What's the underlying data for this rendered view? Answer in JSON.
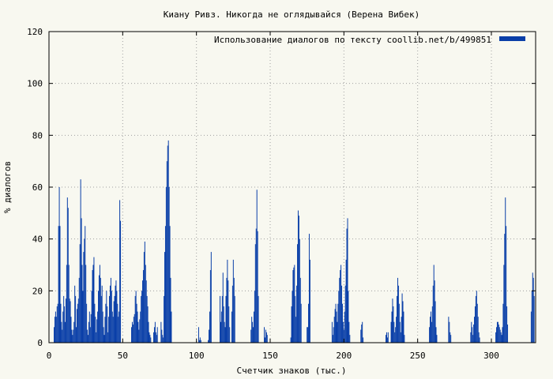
{
  "chart_data": {
    "type": "bar",
    "title": "Киану Ривз. Никогда не оглядывайся (Верена Вибек)",
    "xlabel": "Счетчик знаков (тыс.)",
    "ylabel": "% диалогов",
    "xlim": [
      0,
      330
    ],
    "ylim": [
      0,
      120
    ],
    "xticks": [
      0,
      50,
      100,
      150,
      200,
      250,
      300
    ],
    "yticks": [
      0,
      20,
      40,
      60,
      80,
      100,
      120
    ],
    "grid": true,
    "legend_position": "top-right",
    "series": [
      {
        "name": "Использование диалогов по тексту  coollib.net/b/499851",
        "color": "#0a3fa8",
        "x": [
          3.5,
          4,
          4.5,
          5,
          5.5,
          6,
          6.5,
          7,
          7.5,
          8,
          8.5,
          9,
          9.5,
          10,
          10.5,
          11,
          11.5,
          12,
          12.5,
          13,
          13.5,
          14,
          14.5,
          15,
          15.5,
          16,
          16.5,
          17,
          17.5,
          18,
          18.5,
          19,
          19.5,
          20,
          20.5,
          21,
          21.5,
          22,
          22.5,
          23,
          23.5,
          24,
          24.5,
          25,
          25.5,
          26,
          26.5,
          27,
          27.5,
          28,
          28.5,
          29,
          29.5,
          30,
          30.5,
          31,
          31.5,
          32,
          32.5,
          33,
          33.5,
          34,
          34.5,
          35,
          35.5,
          36,
          36.5,
          37,
          37.5,
          38,
          38.5,
          39,
          39.5,
          40,
          40.5,
          41,
          41.5,
          42,
          42.5,
          43,
          43.5,
          44,
          44.5,
          45,
          45.5,
          46,
          46.5,
          47,
          47.5,
          48,
          48.5,
          56,
          56.5,
          57,
          57.5,
          58,
          58.5,
          59,
          59.5,
          60,
          60.5,
          61,
          61.5,
          62,
          62.5,
          63,
          63.5,
          64,
          64.5,
          65,
          65.5,
          66,
          66.5,
          67,
          67.5,
          68,
          68.5,
          69,
          71,
          71.5,
          72,
          72.5,
          73,
          73.5,
          76,
          76.5,
          77,
          77.5,
          78,
          78.5,
          79,
          79.5,
          80,
          80.5,
          81,
          81.5,
          82,
          82.5,
          83,
          101.5,
          102,
          102.5,
          103,
          108,
          108.5,
          109,
          109.5,
          110,
          116,
          116.5,
          117,
          117.5,
          118,
          118.5,
          119,
          119.5,
          120,
          120.5,
          121,
          121.5,
          122,
          122.5,
          124,
          124.5,
          125,
          125.5,
          126,
          137,
          137.5,
          138,
          138.5,
          139,
          139.5,
          140,
          140.5,
          141,
          141.5,
          142,
          146,
          146.5,
          147,
          147.5,
          148,
          164,
          164.5,
          165,
          165.5,
          166,
          166.5,
          167,
          167.5,
          168,
          168.5,
          169,
          169.5,
          170,
          170.5,
          171,
          175,
          175.5,
          176,
          176.5,
          177,
          192,
          192.5,
          193,
          193.5,
          194,
          194.5,
          195,
          195.5,
          196,
          196.5,
          197,
          197.5,
          198,
          198.5,
          199,
          199.5,
          200,
          200.5,
          201,
          201.5,
          202,
          202.5,
          203,
          203.5,
          204,
          211.5,
          212,
          212.5,
          213,
          228.5,
          229,
          229.5,
          230,
          232,
          232.5,
          233,
          233.5,
          234,
          234.5,
          235,
          235.5,
          236,
          236.5,
          237,
          237.5,
          238,
          238.5,
          239,
          239.5,
          240,
          240.5,
          241,
          258,
          258.5,
          259,
          259.5,
          260,
          260.5,
          261,
          261.5,
          262,
          262.5,
          263,
          271,
          271.5,
          272,
          272.5,
          286,
          286.5,
          287,
          287.5,
          288,
          288.5,
          289,
          289.5,
          290,
          290.5,
          291,
          291.5,
          292,
          303,
          303.5,
          304,
          304.5,
          305,
          305.5,
          306,
          306.5,
          307,
          307.5,
          308,
          308.5,
          309,
          309.5,
          310,
          310.5,
          311,
          327,
          327.5,
          328,
          328.5,
          329
        ],
        "values": [
          6,
          10,
          12,
          10,
          14,
          15,
          45,
          60,
          45,
          15,
          8,
          5,
          12,
          18,
          14,
          8,
          17,
          30,
          56,
          52,
          30,
          17,
          16,
          10,
          5,
          3,
          5,
          8,
          22,
          18,
          6,
          13,
          15,
          17,
          25,
          38,
          63,
          48,
          30,
          20,
          35,
          40,
          45,
          30,
          15,
          5,
          3,
          8,
          12,
          6,
          11,
          20,
          28,
          30,
          33,
          15,
          10,
          4,
          9,
          12,
          20,
          26,
          30,
          25,
          18,
          22,
          12,
          6,
          3,
          10,
          15,
          20,
          14,
          4,
          10,
          18,
          22,
          25,
          20,
          12,
          10,
          16,
          18,
          22,
          24,
          20,
          15,
          10,
          12,
          55,
          47,
          6,
          8,
          7,
          10,
          11,
          18,
          20,
          15,
          12,
          8,
          5,
          9,
          12,
          18,
          20,
          24,
          28,
          35,
          39,
          30,
          24,
          18,
          14,
          8,
          4,
          3,
          2,
          4,
          6,
          8,
          4,
          3,
          6,
          8,
          5,
          3,
          2,
          18,
          35,
          45,
          60,
          70,
          76,
          78,
          60,
          45,
          25,
          12,
          6,
          1,
          2,
          1,
          1,
          5,
          12,
          28,
          35,
          18,
          8,
          12,
          18,
          27,
          14,
          8,
          6,
          18,
          25,
          32,
          24,
          14,
          6,
          12,
          22,
          32,
          25,
          18,
          5,
          10,
          8,
          6,
          12,
          20,
          38,
          44,
          59,
          43,
          18,
          6,
          2,
          5,
          4,
          3,
          2,
          14,
          20,
          28,
          29,
          30,
          18,
          10,
          22,
          38,
          51,
          49,
          40,
          25,
          15,
          6,
          6,
          15,
          42,
          32,
          8,
          3,
          6,
          10,
          13,
          15,
          12,
          8,
          15,
          20,
          25,
          28,
          30,
          22,
          15,
          8,
          5,
          12,
          22,
          32,
          44,
          48,
          20,
          8,
          3,
          5,
          7,
          8,
          2,
          3,
          4,
          2,
          4,
          8,
          12,
          17,
          14,
          8,
          4,
          6,
          10,
          18,
          25,
          22,
          15,
          8,
          4,
          10,
          19,
          16,
          12,
          3,
          6,
          10,
          12,
          8,
          14,
          22,
          30,
          24,
          16,
          6,
          3,
          10,
          8,
          4,
          3,
          4,
          8,
          6,
          3,
          7,
          10,
          14,
          18,
          20,
          15,
          10,
          4,
          2,
          4,
          6,
          8,
          8,
          7,
          6,
          5,
          4,
          3,
          6,
          15,
          30,
          42,
          56,
          45,
          14,
          7,
          12,
          20,
          27,
          25,
          18
        ]
      }
    ]
  }
}
